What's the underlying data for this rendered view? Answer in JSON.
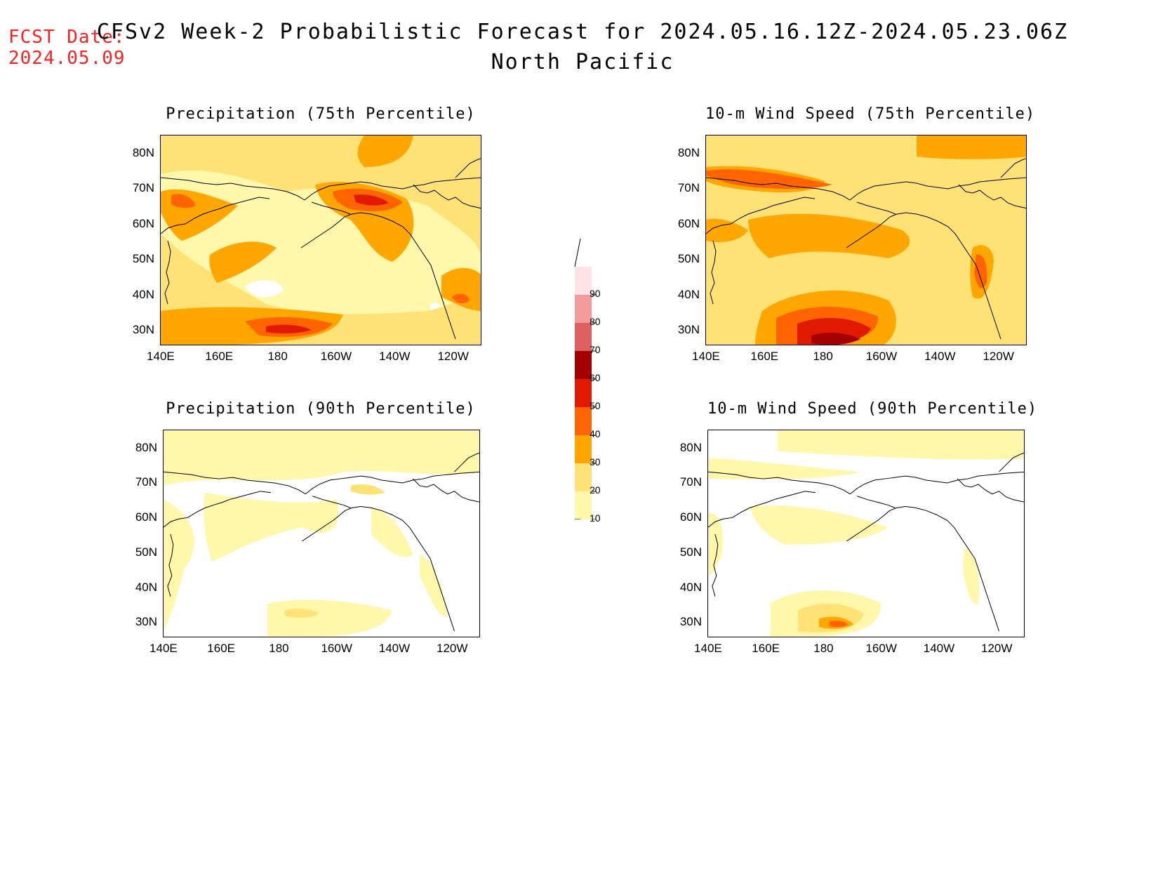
{
  "header": {
    "fcst_label": "FCST Date:",
    "fcst_date": "2024.05.09",
    "title_line1": "CFSv2 Week-2 Probabilistic Forecast for 2024.05.16.12Z-2024.05.23.06Z",
    "title_line2": "North Pacific",
    "fcst_color": "#ff2020"
  },
  "panels": [
    {
      "title": "Precipitation (75th Percentile)",
      "intensity": "high",
      "variable": "precip"
    },
    {
      "title": "10-m Wind Speed (75th Percentile)",
      "intensity": "high",
      "variable": "wind"
    },
    {
      "title": "Precipitation (90th Percentile)",
      "intensity": "low",
      "variable": "precip"
    },
    {
      "title": "10-m Wind Speed (90th Percentile)",
      "intensity": "low",
      "variable": "wind"
    }
  ],
  "lat_labels": [
    "80N",
    "70N",
    "60N",
    "50N",
    "40N",
    "30N"
  ],
  "lon_labels": [
    "140E",
    "160E",
    "180",
    "160W",
    "140W",
    "120W"
  ],
  "colorbar": {
    "levels": [
      "10",
      "20",
      "30",
      "40",
      "50",
      "60",
      "70",
      "80",
      "90"
    ],
    "colors": [
      "#fff7aa",
      "#ffe276",
      "#ffa700",
      "#ff6400",
      "#e11900",
      "#a50000",
      "#de5f5f",
      "#f19b9b",
      "#ffe2e6"
    ]
  }
}
